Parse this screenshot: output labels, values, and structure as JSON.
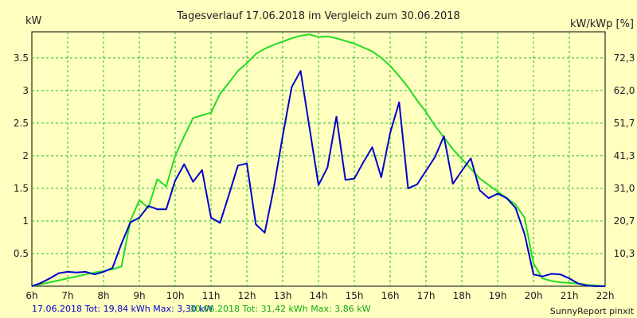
{
  "chart_data": {
    "type": "line",
    "title": "Tagesverlauf 17.06.2018 im Vergleich zum 30.06.2018",
    "ylabel_left": "kW",
    "ylabel_right": "kW/kWp [%]",
    "xlim": [
      6,
      22
    ],
    "ylim": [
      0,
      3.9
    ],
    "grid": true,
    "x_ticks": [
      6,
      7,
      8,
      9,
      10,
      11,
      12,
      13,
      14,
      15,
      16,
      17,
      18,
      19,
      20,
      21,
      22
    ],
    "x_tick_labels": [
      "6h",
      "7h",
      "8h",
      "9h",
      "10h",
      "11h",
      "12h",
      "13h",
      "14h",
      "15h",
      "16h",
      "17h",
      "18h",
      "19h",
      "20h",
      "21h",
      "22h"
    ],
    "y_ticks_left": [
      0.5,
      1,
      1.5,
      2,
      2.5,
      3,
      3.5
    ],
    "y_tick_labels_left": [
      "0.5",
      "1",
      "1.5",
      "2",
      "2.5",
      "3",
      "3.5"
    ],
    "y_ticks_right_pos": [
      0.5,
      1,
      1.5,
      2,
      2.5,
      3,
      3.5
    ],
    "y_tick_labels_right": [
      "10,3",
      "20,7",
      "31,0",
      "41,3",
      "51,7",
      "62,0",
      "72,3"
    ],
    "series": [
      {
        "name": "17.06.2018",
        "summary": "17.06.2018 Tot: 19,84 kWh Max: 3,30 kW",
        "color": "#0000cc",
        "x": [
          6.0,
          6.25,
          6.5,
          6.75,
          7.0,
          7.25,
          7.5,
          7.75,
          8.0,
          8.25,
          8.5,
          8.75,
          9.0,
          9.25,
          9.5,
          9.75,
          10.0,
          10.25,
          10.5,
          10.75,
          11.0,
          11.25,
          11.5,
          11.75,
          12.0,
          12.25,
          12.5,
          12.75,
          13.0,
          13.25,
          13.5,
          13.75,
          14.0,
          14.25,
          14.5,
          14.75,
          15.0,
          15.25,
          15.5,
          15.75,
          16.0,
          16.25,
          16.5,
          16.75,
          17.0,
          17.25,
          17.5,
          17.75,
          18.0,
          18.25,
          18.5,
          18.75,
          19.0,
          19.25,
          19.5,
          19.75,
          20.0,
          20.25,
          20.5,
          20.75,
          21.0,
          21.25,
          21.5,
          21.75,
          22.0
        ],
        "values": [
          0.0,
          0.05,
          0.12,
          0.2,
          0.22,
          0.21,
          0.22,
          0.18,
          0.22,
          0.28,
          0.65,
          0.98,
          1.05,
          1.23,
          1.18,
          1.18,
          1.62,
          1.87,
          1.6,
          1.78,
          1.05,
          0.97,
          1.4,
          1.85,
          1.88,
          0.95,
          0.82,
          1.5,
          2.3,
          3.05,
          3.3,
          2.42,
          1.55,
          1.82,
          2.6,
          1.63,
          1.65,
          1.9,
          2.13,
          1.67,
          2.35,
          2.82,
          1.5,
          1.56,
          1.77,
          1.98,
          2.3,
          1.57,
          1.77,
          1.96,
          1.47,
          1.35,
          1.42,
          1.35,
          1.2,
          0.8,
          0.18,
          0.15,
          0.19,
          0.18,
          0.12,
          0.04,
          0.01,
          0.0,
          0.0
        ]
      },
      {
        "name": "30.06.2018",
        "summary": "30.06.2018 Tot: 31,42 kWh Max: 3,86 kW",
        "color": "#22dd22",
        "x": [
          6.0,
          6.25,
          6.5,
          6.75,
          7.0,
          7.25,
          7.5,
          7.75,
          8.0,
          8.25,
          8.5,
          8.75,
          9.0,
          9.25,
          9.5,
          9.75,
          10.0,
          10.25,
          10.5,
          10.75,
          11.0,
          11.25,
          11.5,
          11.75,
          12.0,
          12.25,
          12.5,
          12.75,
          13.0,
          13.25,
          13.5,
          13.75,
          14.0,
          14.25,
          14.5,
          14.75,
          15.0,
          15.25,
          15.5,
          15.75,
          16.0,
          16.25,
          16.5,
          16.75,
          17.0,
          17.25,
          17.5,
          17.75,
          18.0,
          18.25,
          18.5,
          18.75,
          19.0,
          19.25,
          19.5,
          19.75,
          20.0,
          20.25,
          20.5,
          20.75,
          21.0,
          21.25,
          21.5,
          21.75,
          22.0
        ],
        "values": [
          0.0,
          0.03,
          0.06,
          0.09,
          0.12,
          0.15,
          0.18,
          0.21,
          0.23,
          0.26,
          0.3,
          1.0,
          1.32,
          1.2,
          1.64,
          1.53,
          2.0,
          2.3,
          2.58,
          2.62,
          2.66,
          2.95,
          3.12,
          3.3,
          3.42,
          3.56,
          3.64,
          3.7,
          3.75,
          3.8,
          3.84,
          3.86,
          3.82,
          3.83,
          3.8,
          3.76,
          3.72,
          3.66,
          3.6,
          3.5,
          3.38,
          3.22,
          3.05,
          2.85,
          2.67,
          2.46,
          2.28,
          2.1,
          1.95,
          1.8,
          1.65,
          1.55,
          1.45,
          1.35,
          1.25,
          1.05,
          0.35,
          0.12,
          0.08,
          0.06,
          0.05,
          0.04,
          0.02,
          0.01,
          0.0
        ]
      }
    ],
    "credit": "SunnyReport pinxit"
  }
}
